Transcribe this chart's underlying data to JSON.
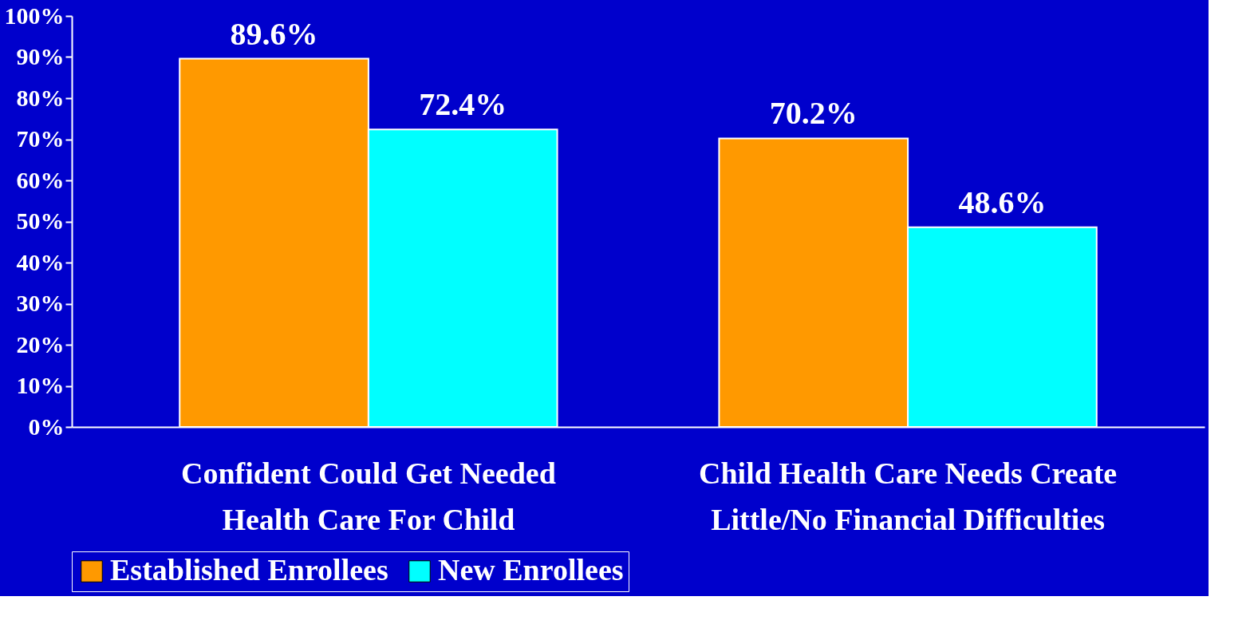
{
  "chart_data": {
    "type": "bar",
    "categories": [
      "Confident Could Get Needed\nHealth Care For Child",
      "Child Health Care Needs Create\nLittle/No Financial Difficulties"
    ],
    "series": [
      {
        "name": "Established Enrollees",
        "color": "#ff9900",
        "values": [
          89.6,
          70.2
        ],
        "value_labels": [
          "89.6%",
          "70.2%"
        ]
      },
      {
        "name": "New Enrollees",
        "color": "#00ffff",
        "values": [
          72.4,
          48.6
        ],
        "value_labels": [
          "72.4%",
          "48.6%"
        ]
      }
    ],
    "ylim": [
      0,
      100
    ],
    "yticks": [
      {
        "value": 0,
        "label": "0%"
      },
      {
        "value": 10,
        "label": "10%"
      },
      {
        "value": 20,
        "label": "20%"
      },
      {
        "value": 30,
        "label": "30%"
      },
      {
        "value": 40,
        "label": "40%"
      },
      {
        "value": 50,
        "label": "50%"
      },
      {
        "value": 60,
        "label": "60%"
      },
      {
        "value": 70,
        "label": "70%"
      },
      {
        "value": 80,
        "label": "80%"
      },
      {
        "value": 90,
        "label": "90%"
      },
      {
        "value": 100,
        "label": "100%"
      }
    ],
    "grid": false,
    "legend": "bottom"
  }
}
